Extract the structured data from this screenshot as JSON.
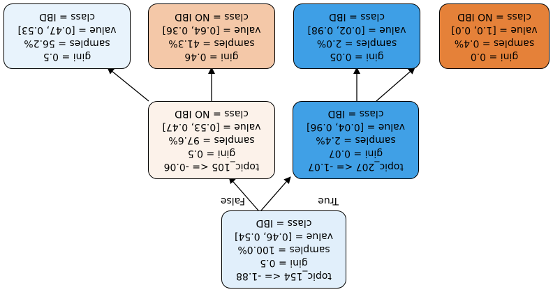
{
  "nodes": {
    "root": {
      "condition": "topic_154 <= -1.88",
      "gini": "gini = 0.5",
      "samples": "samples = 100.0%",
      "value": "value = [0.46, 0.54]",
      "class": "class = IBD",
      "fill": "#e1effb"
    },
    "left": {
      "condition": "topic_207 <= -1.07",
      "gini": "gini = 0.07",
      "samples": "samples = 2.4%",
      "value": "value = [0.04, 0.96]",
      "class": "class = IBD",
      "fill": "#40a0e6"
    },
    "right": {
      "condition": "topic_105 <= -0.06",
      "gini": "gini = 0.5",
      "samples": "samples = 97.6%",
      "value": "value = [0.53, 0.47]",
      "class": "class = NO IBD",
      "fill": "#fcf2ea"
    },
    "leaf_ll": {
      "gini": "gini = 0.0",
      "samples": "samples = 0.4%",
      "value": "value = [1.0, 0.0]",
      "class": "class = NO IBD",
      "fill": "#e58139"
    },
    "leaf_lr": {
      "gini": "gini = 0.05",
      "samples": "samples = 2.0%",
      "value": "value = [0.02, 0.98]",
      "class": "class = IBD",
      "fill": "#3e9fe6"
    },
    "leaf_rl": {
      "gini": "gini = 0.46",
      "samples": "samples = 41.3%",
      "value": "value = [0.64, 0.36]",
      "class": "class = NO IBD",
      "fill": "#f4c8a8"
    },
    "leaf_rr": {
      "gini": "gini = 0.5",
      "samples": "samples = 56.2%",
      "value": "value = [0.47, 0.53]",
      "class": "class = IBD",
      "fill": "#e8f3fc"
    }
  },
  "edge_labels": {
    "true_label": "True",
    "false_label": "False"
  }
}
